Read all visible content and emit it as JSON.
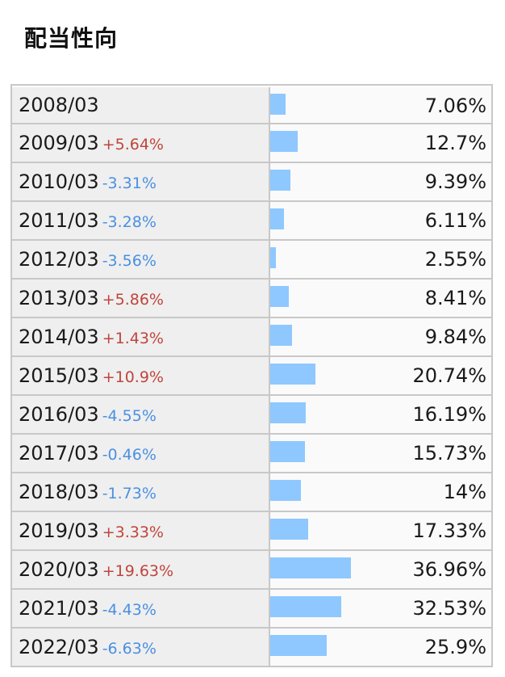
{
  "header": {
    "title": "配当性向"
  },
  "colors": {
    "bar": "#8ec8ff",
    "increase": "#c0453c",
    "decrease": "#4a90e2",
    "period_bg": "#efefef"
  },
  "rows": [
    {
      "period": "2008/03",
      "change": "",
      "direction": "none",
      "value_label": "7.06%",
      "value": 7.06
    },
    {
      "period": "2009/03",
      "change": "+5.64%",
      "direction": "up",
      "value_label": "12.7%",
      "value": 12.7
    },
    {
      "period": "2010/03",
      "change": "-3.31%",
      "direction": "down",
      "value_label": "9.39%",
      "value": 9.39
    },
    {
      "period": "2011/03",
      "change": "-3.28%",
      "direction": "down",
      "value_label": "6.11%",
      "value": 6.11
    },
    {
      "period": "2012/03",
      "change": "-3.56%",
      "direction": "down",
      "value_label": "2.55%",
      "value": 2.55
    },
    {
      "period": "2013/03",
      "change": "+5.86%",
      "direction": "up",
      "value_label": "8.41%",
      "value": 8.41
    },
    {
      "period": "2014/03",
      "change": "+1.43%",
      "direction": "up",
      "value_label": "9.84%",
      "value": 9.84
    },
    {
      "period": "2015/03",
      "change": "+10.9%",
      "direction": "up",
      "value_label": "20.74%",
      "value": 20.74
    },
    {
      "period": "2016/03",
      "change": "-4.55%",
      "direction": "down",
      "value_label": "16.19%",
      "value": 16.19
    },
    {
      "period": "2017/03",
      "change": "-0.46%",
      "direction": "down",
      "value_label": "15.73%",
      "value": 15.73
    },
    {
      "period": "2018/03",
      "change": "-1.73%",
      "direction": "down",
      "value_label": "14%",
      "value": 14
    },
    {
      "period": "2019/03",
      "change": "+3.33%",
      "direction": "up",
      "value_label": "17.33%",
      "value": 17.33
    },
    {
      "period": "2020/03",
      "change": "+19.63%",
      "direction": "up",
      "value_label": "36.96%",
      "value": 36.96
    },
    {
      "period": "2021/03",
      "change": "-4.43%",
      "direction": "down",
      "value_label": "32.53%",
      "value": 32.53
    },
    {
      "period": "2022/03",
      "change": "-6.63%",
      "direction": "down",
      "value_label": "25.9%",
      "value": 25.9
    }
  ]
}
